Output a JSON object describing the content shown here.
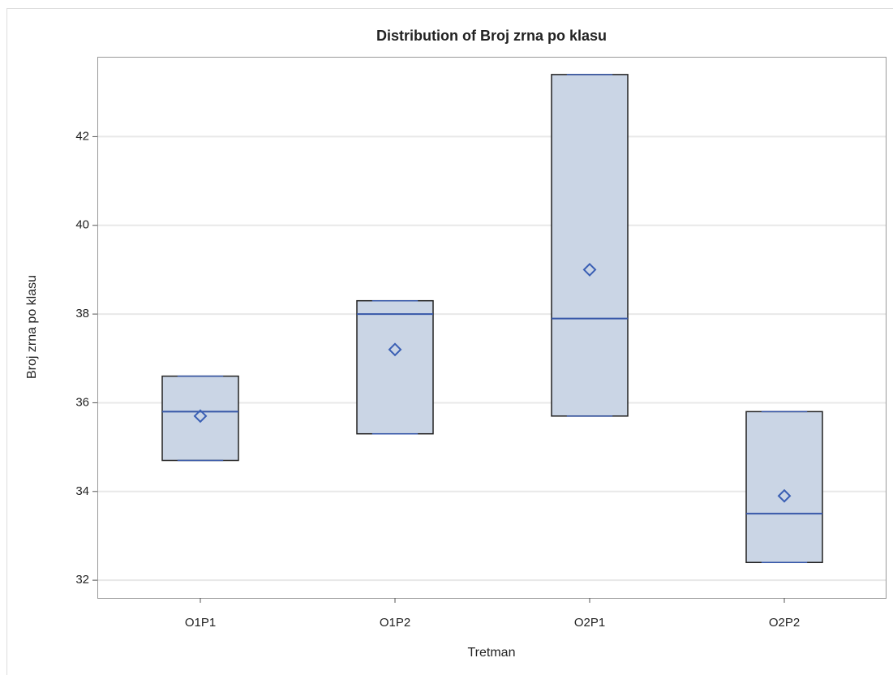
{
  "chart_data": {
    "type": "box",
    "title": "Distribution of Broj zrna po klasu",
    "x_label": "Tretman",
    "y_label": "Broj zrna po klasu",
    "categories": [
      "O1P1",
      "O1P2",
      "O2P1",
      "O2P2"
    ],
    "min": [
      34.7,
      35.3,
      35.7,
      32.4
    ],
    "q1": [
      34.7,
      35.3,
      35.7,
      32.4
    ],
    "median": [
      35.8,
      38.0,
      37.9,
      33.5
    ],
    "q3": [
      36.6,
      38.3,
      43.4,
      35.8
    ],
    "max": [
      36.6,
      38.3,
      43.4,
      35.8
    ],
    "mean": [
      35.7,
      37.2,
      39.0,
      33.9
    ],
    "color": "#cad5e5",
    "median_color": "#3656a8",
    "mean_color": "#3a5fb4",
    "ylim": [
      31.6,
      43.8
    ],
    "yticks": [
      32,
      34,
      36,
      38,
      40,
      42
    ],
    "grid": true
  }
}
